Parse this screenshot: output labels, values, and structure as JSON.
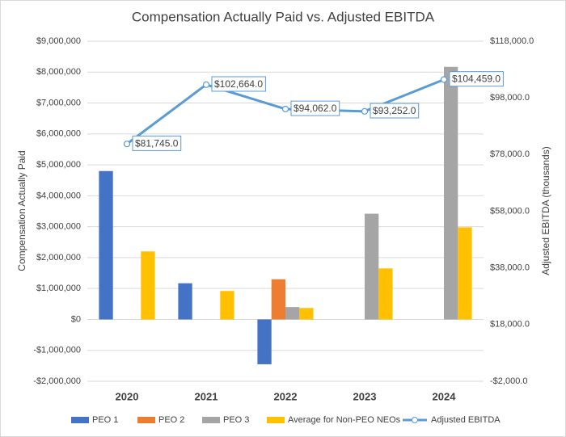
{
  "chart_data": {
    "type": "bar-line",
    "title": "Compensation Actually Paid vs. Adjusted EBITDA",
    "y_label": "Compensation Actually Paid",
    "y2_label": "Adjusted EBITDA (thousands)",
    "categories": [
      "2020",
      "2021",
      "2022",
      "2023",
      "2024"
    ],
    "ylim": [
      -2000000,
      9000000
    ],
    "yticks": [
      {
        "value": -2000000,
        "label": "-$2,000,000"
      },
      {
        "value": -1000000,
        "label": "-$1,000,000"
      },
      {
        "value": 0,
        "label": "$0"
      },
      {
        "value": 1000000,
        "label": "$1,000,000"
      },
      {
        "value": 2000000,
        "label": "$2,000,000"
      },
      {
        "value": 3000000,
        "label": "$3,000,000"
      },
      {
        "value": 4000000,
        "label": "$4,000,000"
      },
      {
        "value": 5000000,
        "label": "$5,000,000"
      },
      {
        "value": 6000000,
        "label": "$6,000,000"
      },
      {
        "value": 7000000,
        "label": "$7,000,000"
      },
      {
        "value": 8000000,
        "label": "$8,000,000"
      },
      {
        "value": 9000000,
        "label": "$9,000,000"
      }
    ],
    "y2lim": [
      -2000,
      118000
    ],
    "y2ticks": [
      {
        "value": -2000,
        "label": "-$2,000.0"
      },
      {
        "value": 18000,
        "label": "$18,000.0"
      },
      {
        "value": 38000,
        "label": "$38,000.0"
      },
      {
        "value": 58000,
        "label": "$58,000.0"
      },
      {
        "value": 78000,
        "label": "$78,000.0"
      },
      {
        "value": 98000,
        "label": "$98,000.0"
      },
      {
        "value": 118000,
        "label": "$118,000.0"
      }
    ],
    "grid": true,
    "legend": "bottom",
    "series": [
      {
        "name": "PEO 1",
        "type": "bar",
        "color": "#4472c4",
        "values": [
          4800000,
          1170000,
          -1450000,
          null,
          null
        ]
      },
      {
        "name": "PEO 2",
        "type": "bar",
        "color": "#ed7d31",
        "values": [
          null,
          null,
          1300000,
          null,
          null
        ]
      },
      {
        "name": "PEO 3",
        "type": "bar",
        "color": "#a5a5a5",
        "values": [
          null,
          null,
          400000,
          3420000,
          8170000
        ]
      },
      {
        "name": "Average for Non-PEO NEOs",
        "type": "bar",
        "color": "#ffc000",
        "values": [
          2200000,
          920000,
          370000,
          1650000,
          2980000
        ]
      },
      {
        "name": "Adjusted EBITDA",
        "type": "line",
        "axis": "y2",
        "color": "#5b9bd5",
        "values": [
          81745,
          102664,
          94062,
          93252,
          104459
        ],
        "value_labels": [
          "$81,745.0",
          "$102,664.0",
          "$94,062.0",
          "$93,252.0",
          "$104,459.0"
        ]
      }
    ]
  }
}
